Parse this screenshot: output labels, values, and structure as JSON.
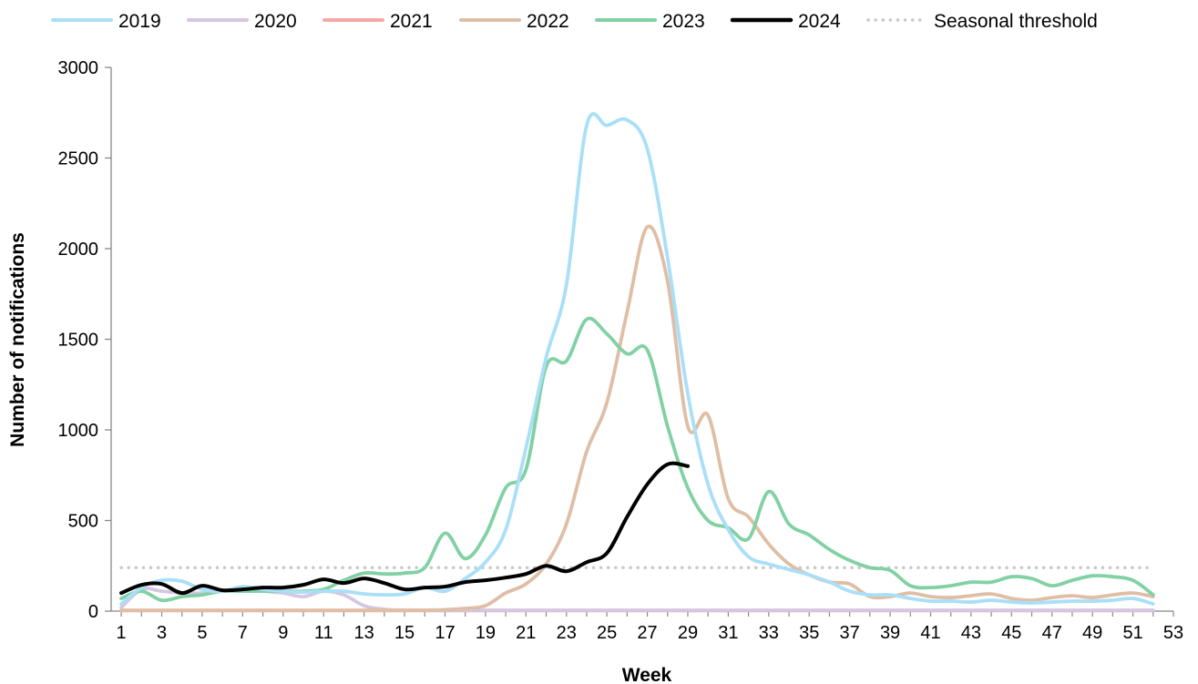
{
  "chart_data": {
    "type": "line",
    "xlabel": "Week",
    "ylabel": "Number of notifications",
    "xlim": [
      0.5,
      53
    ],
    "ylim": [
      0,
      3000
    ],
    "xticks": [
      1,
      3,
      5,
      7,
      9,
      11,
      13,
      15,
      17,
      19,
      21,
      23,
      25,
      27,
      29,
      31,
      33,
      35,
      37,
      39,
      41,
      43,
      45,
      47,
      49,
      51,
      53
    ],
    "yticks": [
      0,
      500,
      1000,
      1500,
      2000,
      2500,
      3000
    ],
    "grid": false,
    "legend_position": "top",
    "series": [
      {
        "name": "2019",
        "color": "#a9dff7",
        "style": "solid",
        "x": [
          1,
          2,
          3,
          4,
          5,
          6,
          7,
          8,
          9,
          10,
          11,
          12,
          13,
          14,
          15,
          16,
          17,
          18,
          19,
          20,
          21,
          22,
          23,
          24,
          25,
          26,
          27,
          28,
          29,
          30,
          31,
          32,
          33,
          34,
          35,
          36,
          37,
          38,
          39,
          40,
          41,
          42,
          43,
          44,
          45,
          46,
          47,
          48,
          49,
          50,
          51,
          52
        ],
        "values": [
          40,
          130,
          170,
          165,
          120,
          110,
          135,
          120,
          110,
          105,
          110,
          110,
          95,
          90,
          95,
          130,
          110,
          180,
          270,
          450,
          900,
          1400,
          1800,
          2680,
          2680,
          2710,
          2550,
          1950,
          1200,
          700,
          450,
          300,
          260,
          230,
          200,
          160,
          110,
          90,
          90,
          70,
          55,
          55,
          50,
          60,
          50,
          45,
          50,
          55,
          55,
          60,
          70,
          40
        ]
      },
      {
        "name": "2020",
        "color": "#d5c6e2",
        "style": "solid",
        "x": [
          1,
          2,
          3,
          4,
          5,
          6,
          7,
          8,
          9,
          10,
          11,
          12,
          13,
          14,
          15,
          16,
          17,
          18,
          19,
          20,
          21,
          22,
          23,
          24,
          25,
          26,
          27,
          28,
          29,
          30,
          31,
          32,
          33,
          34,
          35,
          36,
          37,
          38,
          39,
          40,
          41,
          42,
          43,
          44,
          45,
          46,
          47,
          48,
          49,
          50,
          51,
          52
        ],
        "values": [
          20,
          120,
          110,
          100,
          100,
          110,
          120,
          110,
          100,
          80,
          110,
          90,
          30,
          10,
          5,
          5,
          5,
          5,
          5,
          5,
          5,
          5,
          5,
          5,
          5,
          5,
          5,
          5,
          5,
          5,
          5,
          5,
          5,
          5,
          5,
          5,
          5,
          5,
          5,
          5,
          5,
          5,
          5,
          5,
          5,
          5,
          5,
          5,
          5,
          5,
          5,
          5
        ]
      },
      {
        "name": "2021",
        "color": "#f4a9a6",
        "style": "solid",
        "x": [
          1,
          2,
          3,
          4,
          5,
          6,
          7,
          8,
          9,
          10,
          11,
          12,
          13,
          14,
          15,
          16,
          17,
          18,
          19,
          20,
          21,
          22,
          23,
          24,
          25,
          26,
          27,
          28,
          29,
          30,
          31,
          32,
          33,
          34,
          35,
          36,
          37,
          38,
          39,
          40,
          41,
          42,
          43,
          44,
          45,
          46,
          47,
          48,
          49,
          50,
          51,
          52
        ],
        "values": [
          3,
          3,
          3,
          3,
          3,
          3,
          3,
          3,
          3,
          3,
          3,
          3,
          3,
          3,
          3,
          3,
          3,
          3,
          3,
          3,
          3,
          3,
          3,
          3,
          3,
          3,
          3,
          3,
          3,
          3,
          3,
          3,
          3,
          3,
          3,
          3,
          3,
          3,
          3,
          3,
          3,
          3,
          3,
          3,
          3,
          3,
          3,
          3,
          3,
          3,
          3,
          3
        ]
      },
      {
        "name": "2022",
        "color": "#dfbea6",
        "style": "solid",
        "x": [
          1,
          2,
          3,
          4,
          5,
          6,
          7,
          8,
          9,
          10,
          11,
          12,
          13,
          14,
          15,
          16,
          17,
          18,
          19,
          20,
          21,
          22,
          23,
          24,
          25,
          26,
          27,
          28,
          29,
          30,
          31,
          32,
          33,
          34,
          35,
          36,
          37,
          38,
          39,
          40,
          41,
          42,
          43,
          44,
          45,
          46,
          47,
          48,
          49,
          50,
          51,
          52
        ],
        "values": [
          5,
          5,
          5,
          5,
          5,
          5,
          5,
          5,
          5,
          5,
          5,
          5,
          5,
          5,
          5,
          5,
          8,
          15,
          30,
          100,
          150,
          260,
          480,
          880,
          1150,
          1650,
          2120,
          1820,
          1020,
          1080,
          620,
          520,
          370,
          260,
          200,
          160,
          150,
          80,
          80,
          100,
          80,
          75,
          85,
          95,
          70,
          60,
          75,
          85,
          75,
          90,
          100,
          80
        ]
      },
      {
        "name": "2023",
        "color": "#82d1a4",
        "style": "solid",
        "x": [
          1,
          2,
          3,
          4,
          5,
          6,
          7,
          8,
          9,
          10,
          11,
          12,
          13,
          14,
          15,
          16,
          17,
          18,
          19,
          20,
          21,
          22,
          23,
          24,
          25,
          26,
          27,
          28,
          29,
          30,
          31,
          32,
          33,
          34,
          35,
          36,
          37,
          38,
          39,
          40,
          41,
          42,
          43,
          44,
          45,
          46,
          47,
          48,
          49,
          50,
          51,
          52
        ],
        "values": [
          70,
          110,
          60,
          80,
          90,
          110,
          110,
          110,
          110,
          110,
          120,
          170,
          210,
          205,
          210,
          240,
          430,
          290,
          420,
          680,
          780,
          1350,
          1380,
          1610,
          1530,
          1420,
          1440,
          1020,
          680,
          500,
          460,
          400,
          660,
          480,
          420,
          340,
          280,
          240,
          225,
          140,
          130,
          140,
          160,
          160,
          190,
          180,
          140,
          170,
          195,
          190,
          170,
          90
        ]
      },
      {
        "name": "2024",
        "color": "#000000",
        "style": "solid",
        "x": [
          1,
          2,
          3,
          4,
          5,
          6,
          7,
          8,
          9,
          10,
          11,
          12,
          13,
          14,
          15,
          16,
          17,
          18,
          19,
          20,
          21,
          22,
          23,
          24,
          25,
          26,
          27,
          28,
          29
        ],
        "values": [
          100,
          145,
          150,
          100,
          140,
          115,
          120,
          130,
          130,
          145,
          175,
          155,
          180,
          155,
          120,
          130,
          135,
          160,
          170,
          185,
          205,
          250,
          220,
          270,
          320,
          520,
          700,
          810,
          800
        ]
      },
      {
        "name": "Seasonal threshold",
        "color": "#c9c9c9",
        "style": "dotted",
        "x": [
          1,
          52
        ],
        "values": [
          240,
          240
        ]
      }
    ]
  }
}
